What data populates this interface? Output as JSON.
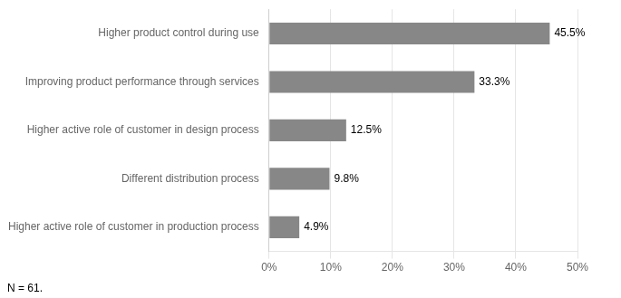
{
  "chart_data": {
    "type": "bar",
    "orientation": "horizontal",
    "categories": [
      "Higher active role of customer in production process",
      "Different distribution process",
      "Higher active role of customer in design process",
      "Improving product performance through services",
      "Higher product control during use"
    ],
    "values": [
      4.9,
      9.8,
      12.5,
      33.3,
      45.5
    ],
    "value_labels": [
      "4.9%",
      "9.8%",
      "12.5%",
      "33.3%",
      "45.5%"
    ],
    "data_labels": true,
    "color": "#878787",
    "xlim": [
      0,
      50
    ],
    "xticks": [
      {
        "value": 0,
        "label": "0%"
      },
      {
        "value": 10,
        "label": "10%"
      },
      {
        "value": 20,
        "label": "20%"
      },
      {
        "value": 30,
        "label": "30%"
      },
      {
        "value": 40,
        "label": "40%"
      },
      {
        "value": 50,
        "label": "50%"
      }
    ],
    "grid": true,
    "annotations": [
      "N = 61."
    ]
  }
}
